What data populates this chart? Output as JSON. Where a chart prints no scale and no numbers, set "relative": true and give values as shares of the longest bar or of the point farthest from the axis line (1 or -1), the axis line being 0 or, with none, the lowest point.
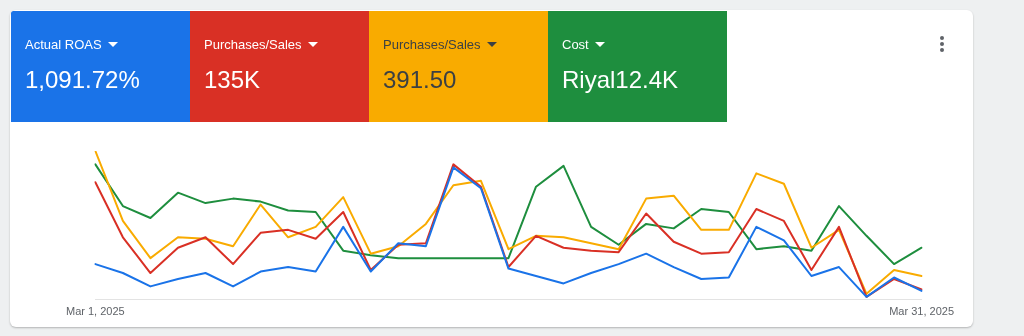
{
  "chart_data": {
    "type": "line",
    "relative": true,
    "legend": "top left",
    "marker": "none",
    "line_style": "solid",
    "categories": [
      "Mar 1, 2025",
      null,
      null,
      null,
      null,
      null,
      null,
      null,
      null,
      null,
      null,
      null,
      null,
      null,
      null,
      null,
      null,
      null,
      null,
      null,
      null,
      null,
      null,
      null,
      null,
      null,
      null,
      null,
      null,
      null,
      "Mar 31, 2025"
    ],
    "annotations": [
      "1,091.72%",
      "135K",
      "391.50",
      "Riyal12.4K"
    ],
    "series": [
      {
        "name": "Actual ROAS",
        "color": "#1a73e8",
        "values": [
          0.24,
          0.18,
          0.09,
          0.14,
          0.18,
          0.09,
          0.19,
          0.22,
          0.19,
          0.49,
          0.19,
          0.38,
          0.36,
          0.89,
          0.75,
          0.21,
          0.16,
          0.11,
          0.18,
          0.24,
          0.31,
          0.22,
          0.14,
          0.15,
          0.49,
          0.4,
          0.16,
          0.22,
          0.02,
          0.15,
          0.06
        ]
      },
      {
        "name": "Purchases/Sales",
        "color": "#d93025",
        "values": [
          0.79,
          0.42,
          0.18,
          0.35,
          0.42,
          0.24,
          0.45,
          0.47,
          0.41,
          0.59,
          0.2,
          0.37,
          0.38,
          0.91,
          0.76,
          0.22,
          0.43,
          0.35,
          0.33,
          0.32,
          0.58,
          0.39,
          0.31,
          0.32,
          0.61,
          0.53,
          0.2,
          0.49,
          0.02,
          0.14,
          0.07
        ]
      },
      {
        "name": "Purchases/Sales",
        "color": "#f9ab00",
        "values": [
          1,
          0.53,
          0.28,
          0.42,
          0.41,
          0.36,
          0.64,
          0.42,
          0.49,
          0.69,
          0.31,
          0.36,
          0.51,
          0.77,
          0.8,
          0.34,
          0.43,
          0.42,
          0.38,
          0.34,
          0.68,
          0.7,
          0.47,
          0.47,
          0.85,
          0.78,
          0.35,
          0.47,
          0.04,
          0.2,
          0.16
        ]
      },
      {
        "name": "Cost",
        "color": "#1e8e3e",
        "values": [
          0.91,
          0.63,
          0.55,
          0.72,
          0.65,
          0.68,
          0.66,
          0.6,
          0.59,
          0.33,
          0.3,
          0.28,
          0.28,
          0.28,
          0.28,
          0.28,
          0.76,
          0.9,
          0.49,
          0.37,
          0.51,
          0.48,
          0.61,
          0.59,
          0.34,
          0.36,
          0.33,
          0.63,
          0.43,
          0.24,
          0.35
        ]
      }
    ]
  }
}
